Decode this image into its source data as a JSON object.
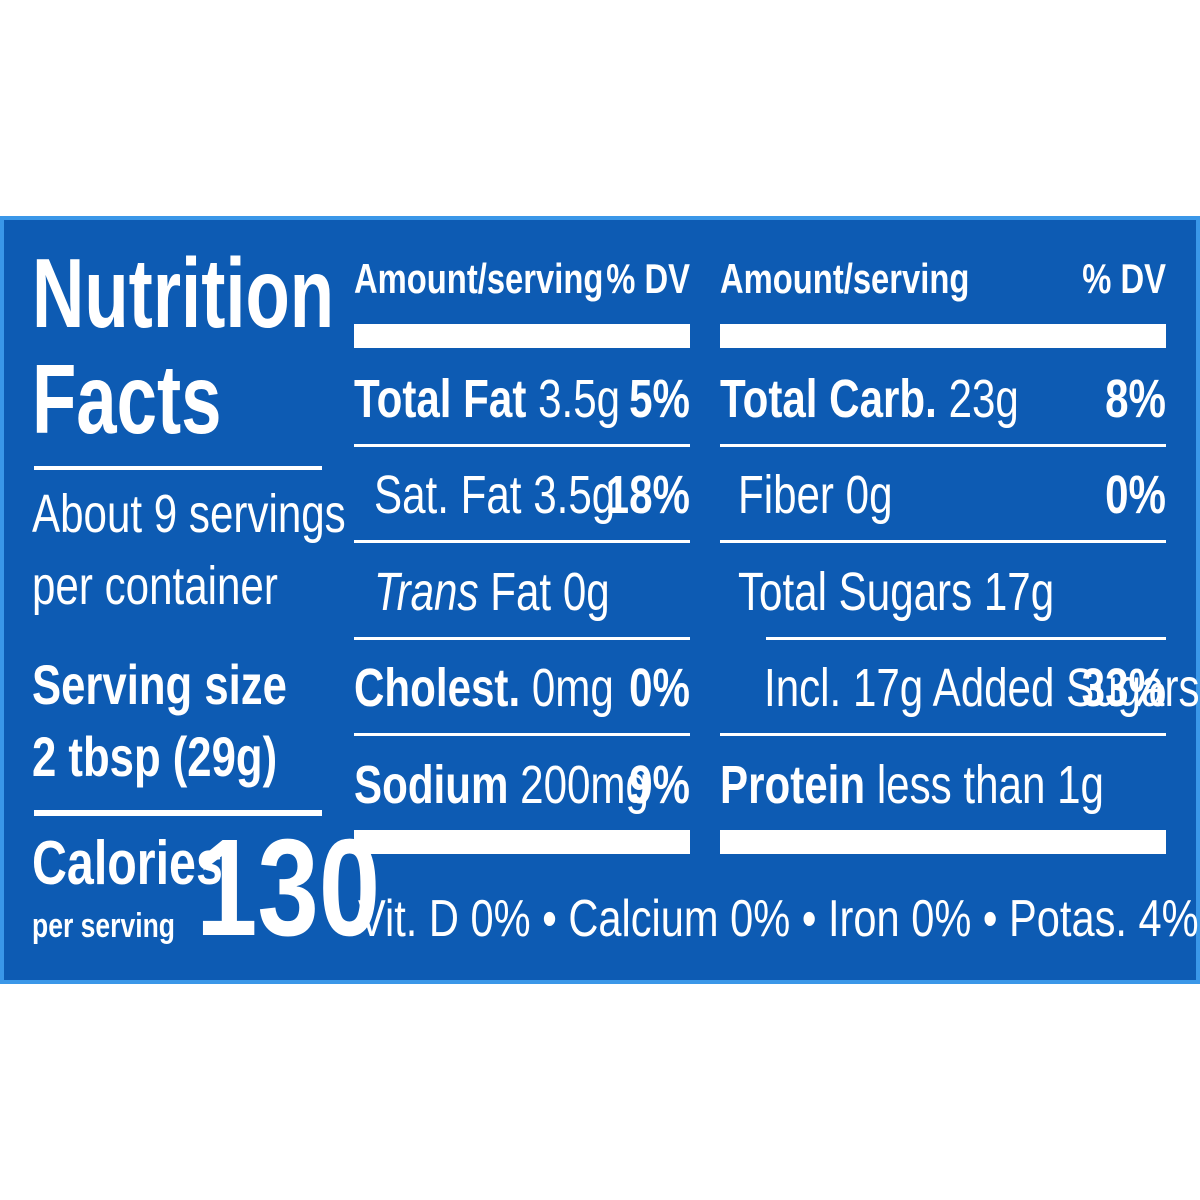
{
  "title": [
    "Nutrition",
    "Facts"
  ],
  "servings": [
    "About 9 servings",
    "per container"
  ],
  "serving_size": {
    "label": "Serving size",
    "value": "2 tbsp (29g)"
  },
  "calories": {
    "label": "Calories",
    "sublabel": "per serving",
    "value": 130
  },
  "columns": [
    {
      "header": {
        "amount": "Amount/serving",
        "dv": "% DV"
      },
      "rows": [
        {
          "label": "Total Fat",
          "amount": "3.5g",
          "dv": "5%"
        },
        {
          "label": "Sat. Fat",
          "amount": "3.5g",
          "dv": "18%"
        },
        {
          "label_italic": "Trans",
          "label": "Fat",
          "amount": "0g"
        },
        {
          "label": "Cholest.",
          "amount": "0mg",
          "dv": "0%"
        },
        {
          "label": "Sodium",
          "amount": "200mg",
          "dv": "9%"
        }
      ]
    },
    {
      "header": {
        "amount": "Amount/serving",
        "dv": "% DV"
      },
      "rows": [
        {
          "label": "Total Carb.",
          "amount": "23g",
          "dv": "8%"
        },
        {
          "label": "Fiber",
          "amount": "0g",
          "dv": "0%"
        },
        {
          "label": "Total Sugars",
          "amount": "17g"
        },
        {
          "label": "Incl. 17g Added Sugars",
          "dv": "33%"
        },
        {
          "label": "Protein",
          "amount": "less than 1g"
        }
      ]
    }
  ],
  "footer": {
    "items": [
      "Vit. D 0%",
      "Calcium 0%",
      "Iron 0%",
      "Potas. 4%"
    ],
    "separator": "•"
  }
}
